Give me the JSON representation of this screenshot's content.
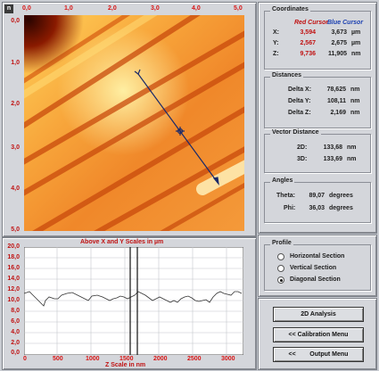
{
  "corner_button": "n",
  "image_view": {
    "x_ticks": [
      "0,0",
      "1,0",
      "2,0",
      "3,0",
      "4,0",
      "5,0"
    ],
    "y_ticks": [
      "0,0",
      "1,0",
      "2,0",
      "3,0",
      "4,0",
      "5,0"
    ]
  },
  "profile_plot": {
    "title": "Above X and Y Scales in µm",
    "xlabel": "Z Scale in nm",
    "y_ticks": [
      "20,0",
      "18,0",
      "16,0",
      "14,0",
      "12,0",
      "10,0",
      "8,0",
      "6,0",
      "4,0",
      "2,0",
      "0,0"
    ],
    "x_ticks": [
      "0",
      "500",
      "1000",
      "1500",
      "2000",
      "2500",
      "3000"
    ]
  },
  "coordinates": {
    "title": "Coordinates",
    "red_label": "Red Cursor",
    "blue_label": "Blue Cursor",
    "rows": [
      {
        "axis": "X:",
        "red": "3,594",
        "blue": "3,673",
        "unit": "µm"
      },
      {
        "axis": "Y:",
        "red": "2,567",
        "blue": "2,675",
        "unit": "µm"
      },
      {
        "axis": "Z:",
        "red": "9,736",
        "blue": "11,905",
        "unit": "nm"
      }
    ]
  },
  "distances": {
    "title": "Distances",
    "rows": [
      {
        "label": "Delta X:",
        "value": "78,625",
        "unit": "nm"
      },
      {
        "label": "Delta Y:",
        "value": "108,11",
        "unit": "nm"
      },
      {
        "label": "Delta Z:",
        "value": "2,169",
        "unit": "nm"
      }
    ]
  },
  "vector_distance": {
    "title": "Vector Distance",
    "rows": [
      {
        "label": "2D:",
        "value": "133,68",
        "unit": "nm"
      },
      {
        "label": "3D:",
        "value": "133,69",
        "unit": "nm"
      }
    ]
  },
  "angles": {
    "title": "Angles",
    "rows": [
      {
        "label": "Theta:",
        "value": "89,07",
        "unit": "degrees"
      },
      {
        "label": "Phi:",
        "value": "36,03",
        "unit": "degrees"
      }
    ]
  },
  "profile_options": {
    "title": "Profile",
    "options": [
      "Horizontal Section",
      "Vertical Section",
      "Diagonal Section"
    ],
    "selected": "Diagonal Section"
  },
  "buttons": {
    "analysis_2d": "2D Analysis",
    "calibration_menu": "<< Calibration Menu",
    "output_menu": "<<        Output Menu"
  },
  "colors": {
    "surface_dark": "#7a1000",
    "surface_mid": "#e9851a",
    "surface_light": "#ffe07a",
    "cursor_line": "#1a2a6a",
    "axis_text": "#c01212"
  }
}
